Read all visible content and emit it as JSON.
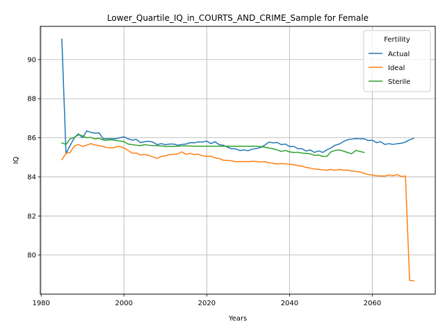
{
  "chart_data": {
    "type": "line",
    "title": "Lower_Quartile_IQ_in_COURTS_AND_CRIME_Sample for Female",
    "xlabel": "Years",
    "ylabel": "IQ",
    "xlim": [
      1979.8,
      2075.2
    ],
    "ylim": [
      78.0,
      91.7
    ],
    "xticks": [
      1980,
      2000,
      2020,
      2040,
      2060
    ],
    "xtick_labels": [
      "1980",
      "2000",
      "2020",
      "2040",
      "2060"
    ],
    "yticks": [
      80,
      82,
      84,
      86,
      88,
      90
    ],
    "ytick_labels": [
      "80",
      "82",
      "84",
      "86",
      "88",
      "90"
    ],
    "grid": true,
    "legend": {
      "title": "Fertility",
      "position": "top-right"
    },
    "series": [
      {
        "name": "Actual",
        "color": "#1f77b4",
        "x": [
          1985,
          1986,
          1987,
          1988,
          1989,
          1990,
          1991,
          1992,
          1993,
          1994,
          1995,
          1996,
          1997,
          1998,
          1999,
          2000,
          2001,
          2002,
          2003,
          2004,
          2005,
          2006,
          2007,
          2008,
          2009,
          2010,
          2011,
          2012,
          2013,
          2014,
          2015,
          2016,
          2017,
          2018,
          2019,
          2020,
          2021,
          2022,
          2023,
          2024,
          2025,
          2026,
          2027,
          2028,
          2029,
          2030,
          2031,
          2032,
          2033,
          2034,
          2035,
          2036,
          2037,
          2038,
          2039,
          2040,
          2041,
          2042,
          2043,
          2044,
          2045,
          2046,
          2047,
          2048,
          2049,
          2050,
          2051,
          2052,
          2053,
          2054,
          2055,
          2056,
          2057,
          2058,
          2059,
          2060,
          2061,
          2062,
          2063,
          2064,
          2065,
          2066,
          2067,
          2068,
          2069,
          2070
        ],
        "y": [
          91.05,
          85.2,
          85.6,
          86.0,
          86.2,
          86.0,
          86.35,
          86.28,
          86.24,
          86.25,
          85.95,
          85.95,
          85.95,
          85.95,
          86.0,
          86.05,
          85.95,
          85.88,
          85.92,
          85.75,
          85.8,
          85.82,
          85.78,
          85.65,
          85.7,
          85.65,
          85.68,
          85.68,
          85.62,
          85.66,
          85.68,
          85.75,
          85.74,
          85.79,
          85.78,
          85.83,
          85.7,
          85.8,
          85.65,
          85.62,
          85.52,
          85.44,
          85.43,
          85.35,
          85.38,
          85.34,
          85.42,
          85.45,
          85.5,
          85.62,
          85.78,
          85.74,
          85.76,
          85.65,
          85.68,
          85.55,
          85.56,
          85.44,
          85.44,
          85.32,
          85.38,
          85.25,
          85.33,
          85.25,
          85.38,
          85.48,
          85.62,
          85.68,
          85.8,
          85.9,
          85.93,
          85.96,
          85.95,
          85.95,
          85.86,
          85.88,
          85.75,
          85.8,
          85.66,
          85.7,
          85.66,
          85.7,
          85.72,
          85.78,
          85.9,
          85.97
        ]
      },
      {
        "name": "Ideal",
        "color": "#ff7f0e",
        "x": [
          1985,
          1986,
          1987,
          1988,
          1989,
          1990,
          1991,
          1992,
          1993,
          1994,
          1995,
          1996,
          1997,
          1998,
          1999,
          2000,
          2001,
          2002,
          2003,
          2004,
          2005,
          2006,
          2007,
          2008,
          2009,
          2010,
          2011,
          2012,
          2013,
          2014,
          2015,
          2016,
          2017,
          2018,
          2019,
          2020,
          2021,
          2022,
          2023,
          2024,
          2025,
          2026,
          2027,
          2028,
          2029,
          2030,
          2031,
          2032,
          2033,
          2034,
          2035,
          2036,
          2037,
          2038,
          2039,
          2040,
          2041,
          2042,
          2043,
          2044,
          2045,
          2046,
          2047,
          2048,
          2049,
          2050,
          2051,
          2052,
          2053,
          2054,
          2055,
          2056,
          2057,
          2058,
          2059,
          2060,
          2061,
          2062,
          2063,
          2064,
          2065,
          2066,
          2067,
          2068,
          2069,
          2070
        ],
        "y": [
          84.88,
          85.2,
          85.25,
          85.58,
          85.66,
          85.56,
          85.62,
          85.7,
          85.63,
          85.6,
          85.55,
          85.5,
          85.48,
          85.52,
          85.56,
          85.48,
          85.35,
          85.22,
          85.22,
          85.12,
          85.15,
          85.1,
          85.02,
          84.94,
          85.04,
          85.08,
          85.14,
          85.15,
          85.18,
          85.28,
          85.15,
          85.2,
          85.14,
          85.16,
          85.08,
          85.05,
          85.06,
          84.98,
          84.94,
          84.85,
          84.84,
          84.82,
          84.78,
          84.79,
          84.78,
          84.78,
          84.8,
          84.79,
          84.76,
          84.78,
          84.72,
          84.7,
          84.66,
          84.68,
          84.66,
          84.65,
          84.62,
          84.58,
          84.55,
          84.48,
          84.45,
          84.4,
          84.38,
          84.36,
          84.34,
          84.38,
          84.34,
          84.38,
          84.34,
          84.35,
          84.3,
          84.28,
          84.25,
          84.18,
          84.12,
          84.1,
          84.05,
          84.05,
          84.04,
          84.1,
          84.06,
          84.12,
          84.02,
          84.04,
          78.7,
          78.68
        ]
      },
      {
        "name": "Sterile",
        "color": "#2ca02c",
        "x": [
          1985,
          1986,
          1987,
          1988,
          1989,
          1990,
          1991,
          1992,
          1993,
          1994,
          1995,
          1996,
          1997,
          1998,
          1999,
          2000,
          2001,
          2002,
          2003,
          2004,
          2005,
          2006,
          2007,
          2008,
          2009,
          2010,
          2011,
          2012,
          2013,
          2014,
          2015,
          2016,
          2017,
          2018,
          2019,
          2020,
          2021,
          2022,
          2023,
          2024,
          2025,
          2026,
          2027,
          2028,
          2029,
          2030,
          2031,
          2032,
          2033,
          2034,
          2035,
          2036,
          2037,
          2038,
          2039,
          2040,
          2041,
          2042,
          2043,
          2044,
          2045,
          2046,
          2047,
          2048,
          2049,
          2050,
          2051,
          2052,
          2053,
          2054,
          2055,
          2056,
          2057,
          2058
        ],
        "y": [
          85.74,
          85.66,
          85.95,
          86.02,
          86.15,
          86.1,
          86.0,
          86.02,
          85.94,
          85.98,
          85.88,
          85.88,
          85.9,
          85.86,
          85.84,
          85.8,
          85.68,
          85.65,
          85.62,
          85.6,
          85.65,
          85.62,
          85.6,
          85.6,
          85.58,
          85.56,
          85.56,
          85.56,
          85.57,
          85.58,
          85.58,
          85.58,
          85.57,
          85.57,
          85.57,
          85.57,
          85.57,
          85.57,
          85.57,
          85.57,
          85.57,
          85.57,
          85.57,
          85.57,
          85.57,
          85.57,
          85.57,
          85.57,
          85.55,
          85.52,
          85.48,
          85.44,
          85.38,
          85.3,
          85.35,
          85.28,
          85.25,
          85.26,
          85.22,
          85.2,
          85.18,
          85.1,
          85.12,
          85.05,
          85.05,
          85.28,
          85.35,
          85.38,
          85.32,
          85.25,
          85.18,
          85.35,
          85.3,
          85.25
        ]
      }
    ]
  }
}
